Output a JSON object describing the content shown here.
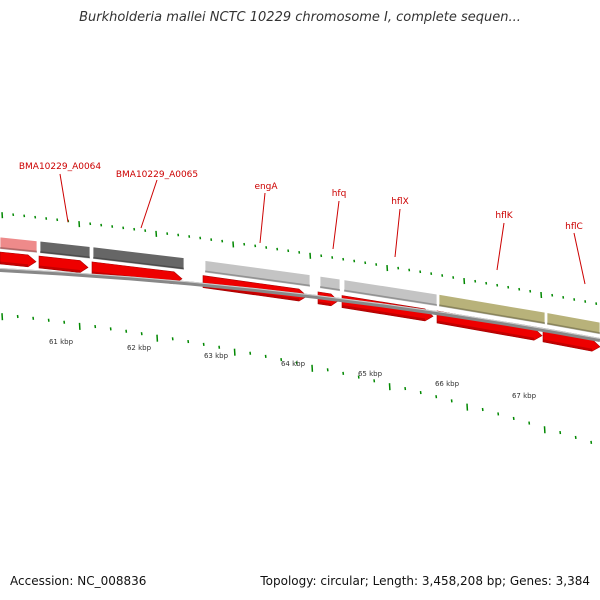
{
  "title": "Burkholderia mallei NCTC 10229 chromosome I, complete sequen...",
  "footer": {
    "accession": "Accession: NC_008836",
    "summary": "Topology: circular; Length: 3,458,208 bp; Genes: 3,384"
  },
  "colors": {
    "gene_label": "#cc0000",
    "cds_arrow": "#ee0000",
    "backbone": "#888888",
    "tick": "#008800",
    "feature_pink": "#ee8a8a",
    "feature_dark": "#666666",
    "feature_light": "#c4c4c4",
    "feature_olive": "#b8b27a"
  },
  "gene_labels": [
    "BMA10229_A0064",
    "BMA10229_A0065",
    "engA",
    "hfq",
    "hflX",
    "hflK",
    "hflC"
  ],
  "kbp_labels": [
    "61 kbp",
    "62 kbp",
    "63 kbp",
    "64 kbp",
    "65 kbp",
    "66 kbp",
    "67 kbp"
  ]
}
